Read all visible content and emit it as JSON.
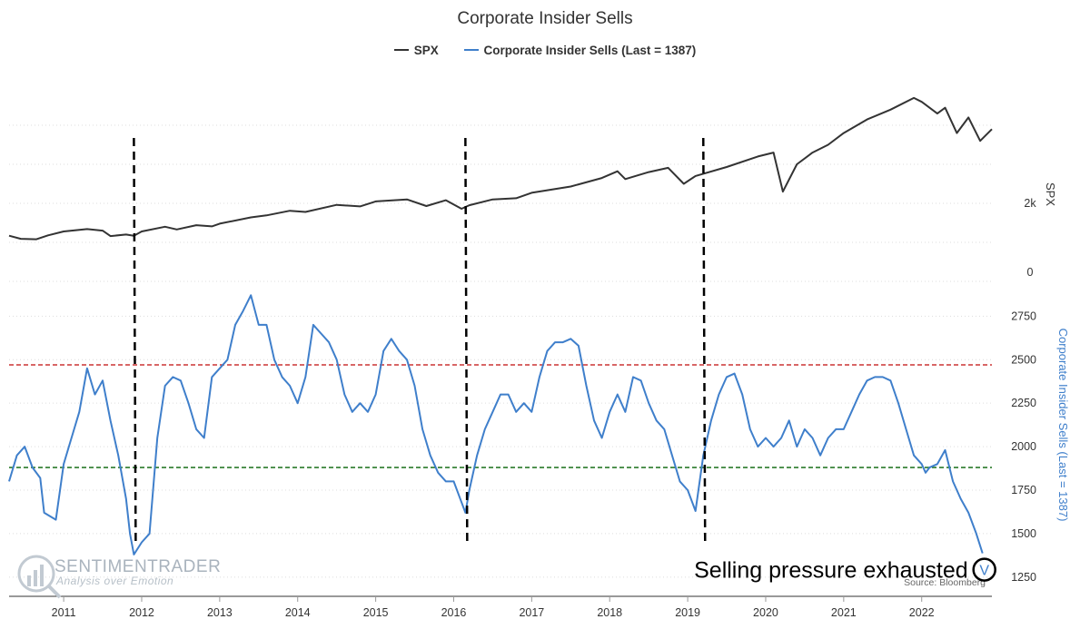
{
  "chart_data": {
    "type": "line",
    "title": "Corporate Insider Sells",
    "legend": {
      "placement": "top-center",
      "entries": [
        {
          "label": "SPX",
          "color": "#333333"
        },
        {
          "label": "Corporate Insider Sells (Last = 1387)",
          "color": "#3f7fcb"
        }
      ]
    },
    "x_ticks": [
      "2011",
      "2012",
      "2013",
      "2014",
      "2015",
      "2016",
      "2017",
      "2018",
      "2019",
      "2020",
      "2021",
      "2022"
    ],
    "xlim": [
      2010.3,
      2022.9
    ],
    "spx": {
      "axis_title": "SPX",
      "axis_ticks": [
        "0",
        "2k"
      ],
      "ylim": [
        0,
        5000
      ],
      "points": [
        [
          2010.3,
          1170
        ],
        [
          2010.45,
          1090
        ],
        [
          2010.65,
          1080
        ],
        [
          2010.8,
          1180
        ],
        [
          2011.0,
          1280
        ],
        [
          2011.3,
          1340
        ],
        [
          2011.5,
          1300
        ],
        [
          2011.6,
          1160
        ],
        [
          2011.8,
          1200
        ],
        [
          2011.9,
          1170
        ],
        [
          2012.0,
          1280
        ],
        [
          2012.3,
          1400
        ],
        [
          2012.45,
          1330
        ],
        [
          2012.7,
          1440
        ],
        [
          2012.9,
          1410
        ],
        [
          2013.0,
          1480
        ],
        [
          2013.4,
          1640
        ],
        [
          2013.6,
          1690
        ],
        [
          2013.9,
          1810
        ],
        [
          2014.1,
          1780
        ],
        [
          2014.5,
          1960
        ],
        [
          2014.8,
          1920
        ],
        [
          2015.0,
          2050
        ],
        [
          2015.4,
          2100
        ],
        [
          2015.65,
          1930
        ],
        [
          2015.9,
          2080
        ],
        [
          2016.1,
          1860
        ],
        [
          2016.2,
          1950
        ],
        [
          2016.5,
          2100
        ],
        [
          2016.8,
          2130
        ],
        [
          2017.0,
          2270
        ],
        [
          2017.5,
          2430
        ],
        [
          2017.9,
          2650
        ],
        [
          2018.1,
          2820
        ],
        [
          2018.2,
          2620
        ],
        [
          2018.5,
          2800
        ],
        [
          2018.75,
          2910
        ],
        [
          2018.95,
          2500
        ],
        [
          2019.1,
          2700
        ],
        [
          2019.5,
          2930
        ],
        [
          2019.9,
          3200
        ],
        [
          2020.1,
          3300
        ],
        [
          2020.22,
          2300
        ],
        [
          2020.4,
          3000
        ],
        [
          2020.6,
          3300
        ],
        [
          2020.8,
          3500
        ],
        [
          2021.0,
          3800
        ],
        [
          2021.3,
          4150
        ],
        [
          2021.6,
          4400
        ],
        [
          2021.9,
          4700
        ],
        [
          2022.0,
          4600
        ],
        [
          2022.2,
          4300
        ],
        [
          2022.3,
          4450
        ],
        [
          2022.45,
          3800
        ],
        [
          2022.6,
          4200
        ],
        [
          2022.75,
          3600
        ],
        [
          2022.9,
          3900
        ]
      ]
    },
    "insider": {
      "axis_title": "Corporate Insider Sells (Last = 1387)",
      "axis_ticks": [
        1250,
        1500,
        1750,
        2000,
        2250,
        2500,
        2750
      ],
      "ylim": [
        1150,
        2950
      ],
      "reference_lines": [
        {
          "value": 2470,
          "color": "#cc3333"
        },
        {
          "value": 1880,
          "color": "#2a7a2a"
        }
      ],
      "points": [
        [
          2010.3,
          1800
        ],
        [
          2010.4,
          1950
        ],
        [
          2010.5,
          2000
        ],
        [
          2010.6,
          1880
        ],
        [
          2010.7,
          1820
        ],
        [
          2010.75,
          1620
        ],
        [
          2010.9,
          1580
        ],
        [
          2011.0,
          1900
        ],
        [
          2011.1,
          2050
        ],
        [
          2011.2,
          2200
        ],
        [
          2011.3,
          2450
        ],
        [
          2011.4,
          2300
        ],
        [
          2011.5,
          2380
        ],
        [
          2011.6,
          2150
        ],
        [
          2011.7,
          1950
        ],
        [
          2011.8,
          1700
        ],
        [
          2011.85,
          1500
        ],
        [
          2011.9,
          1380
        ],
        [
          2012.0,
          1450
        ],
        [
          2012.1,
          1500
        ],
        [
          2012.2,
          2050
        ],
        [
          2012.3,
          2350
        ],
        [
          2012.4,
          2400
        ],
        [
          2012.5,
          2380
        ],
        [
          2012.6,
          2250
        ],
        [
          2012.7,
          2100
        ],
        [
          2012.8,
          2050
        ],
        [
          2012.9,
          2400
        ],
        [
          2013.0,
          2450
        ],
        [
          2013.1,
          2500
        ],
        [
          2013.2,
          2700
        ],
        [
          2013.3,
          2780
        ],
        [
          2013.4,
          2870
        ],
        [
          2013.5,
          2700
        ],
        [
          2013.6,
          2700
        ],
        [
          2013.7,
          2500
        ],
        [
          2013.8,
          2400
        ],
        [
          2013.9,
          2350
        ],
        [
          2014.0,
          2250
        ],
        [
          2014.1,
          2400
        ],
        [
          2014.2,
          2700
        ],
        [
          2014.3,
          2650
        ],
        [
          2014.4,
          2600
        ],
        [
          2014.5,
          2500
        ],
        [
          2014.6,
          2300
        ],
        [
          2014.7,
          2200
        ],
        [
          2014.8,
          2250
        ],
        [
          2014.9,
          2200
        ],
        [
          2015.0,
          2300
        ],
        [
          2015.1,
          2550
        ],
        [
          2015.2,
          2620
        ],
        [
          2015.3,
          2550
        ],
        [
          2015.4,
          2500
        ],
        [
          2015.5,
          2350
        ],
        [
          2015.6,
          2100
        ],
        [
          2015.7,
          1950
        ],
        [
          2015.8,
          1850
        ],
        [
          2015.9,
          1800
        ],
        [
          2016.0,
          1800
        ],
        [
          2016.15,
          1620
        ],
        [
          2016.2,
          1750
        ],
        [
          2016.3,
          1950
        ],
        [
          2016.4,
          2100
        ],
        [
          2016.5,
          2200
        ],
        [
          2016.6,
          2300
        ],
        [
          2016.7,
          2300
        ],
        [
          2016.8,
          2200
        ],
        [
          2016.9,
          2250
        ],
        [
          2017.0,
          2200
        ],
        [
          2017.1,
          2400
        ],
        [
          2017.2,
          2550
        ],
        [
          2017.3,
          2600
        ],
        [
          2017.4,
          2600
        ],
        [
          2017.5,
          2620
        ],
        [
          2017.6,
          2580
        ],
        [
          2017.7,
          2350
        ],
        [
          2017.8,
          2150
        ],
        [
          2017.9,
          2050
        ],
        [
          2018.0,
          2200
        ],
        [
          2018.1,
          2300
        ],
        [
          2018.2,
          2200
        ],
        [
          2018.3,
          2400
        ],
        [
          2018.4,
          2380
        ],
        [
          2018.5,
          2250
        ],
        [
          2018.6,
          2150
        ],
        [
          2018.7,
          2100
        ],
        [
          2018.8,
          1950
        ],
        [
          2018.9,
          1800
        ],
        [
          2019.0,
          1750
        ],
        [
          2019.1,
          1630
        ],
        [
          2019.2,
          1950
        ],
        [
          2019.3,
          2150
        ],
        [
          2019.4,
          2300
        ],
        [
          2019.5,
          2400
        ],
        [
          2019.6,
          2420
        ],
        [
          2019.7,
          2300
        ],
        [
          2019.8,
          2100
        ],
        [
          2019.9,
          2000
        ],
        [
          2020.0,
          2050
        ],
        [
          2020.1,
          2000
        ],
        [
          2020.2,
          2050
        ],
        [
          2020.3,
          2150
        ],
        [
          2020.4,
          2000
        ],
        [
          2020.5,
          2100
        ],
        [
          2020.6,
          2050
        ],
        [
          2020.7,
          1950
        ],
        [
          2020.8,
          2050
        ],
        [
          2020.9,
          2100
        ],
        [
          2021.0,
          2100
        ],
        [
          2021.1,
          2200
        ],
        [
          2021.2,
          2300
        ],
        [
          2021.3,
          2380
        ],
        [
          2021.4,
          2400
        ],
        [
          2021.5,
          2400
        ],
        [
          2021.6,
          2380
        ],
        [
          2021.7,
          2250
        ],
        [
          2021.8,
          2100
        ],
        [
          2021.9,
          1950
        ],
        [
          2022.0,
          1900
        ],
        [
          2022.05,
          1850
        ],
        [
          2022.1,
          1880
        ],
        [
          2022.2,
          1900
        ],
        [
          2022.3,
          1980
        ],
        [
          2022.4,
          1800
        ],
        [
          2022.5,
          1700
        ],
        [
          2022.6,
          1620
        ],
        [
          2022.7,
          1500
        ],
        [
          2022.78,
          1387
        ]
      ]
    },
    "vertical_markers": [
      2011.9,
      2016.15,
      2019.2
    ],
    "annotation": {
      "text": "Selling pressure exhausted",
      "marker": "V",
      "x": 2022.78,
      "y": 1387
    },
    "source": "Source: Bloomberg",
    "watermark": {
      "name": "SENTIMENTRADER",
      "tagline": "Analysis over Emotion"
    },
    "grid": true
  }
}
